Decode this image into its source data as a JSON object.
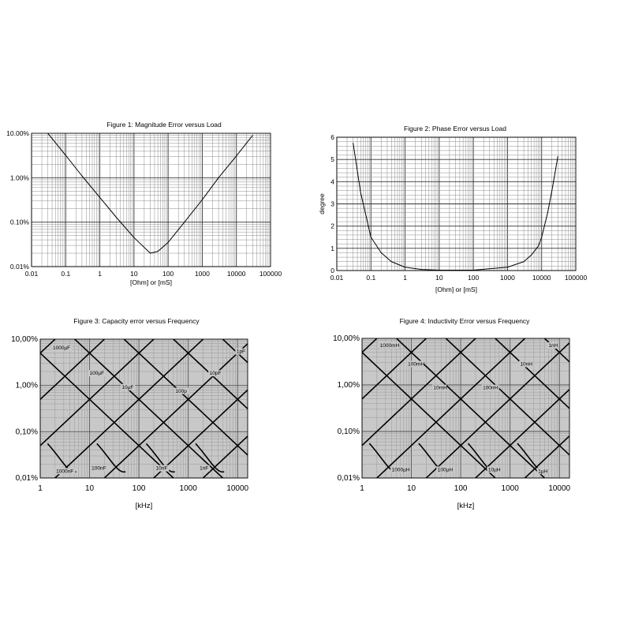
{
  "charts": [
    {
      "id": "fig1",
      "chart_data": {
        "type": "line",
        "title": "Figure 1:  Magnitude Error versus Load",
        "xlabel": "[Ohm]  or  [mS]",
        "ylabel": "",
        "x_scale": "log",
        "y_scale": "log",
        "xlim": [
          0.01,
          100000
        ],
        "ylim": [
          0.01,
          10
        ],
        "x_ticks": [
          "0.01",
          "0.1",
          "1",
          "10",
          "100",
          "1000",
          "10000",
          "100000"
        ],
        "y_ticks": [
          "0.01%",
          "0.10%",
          "1.00%",
          "10.00%"
        ],
        "grid": true,
        "series": [
          {
            "x": [
              0.03,
              0.1,
              0.3,
              1,
              3,
              10,
              20,
              30,
              50,
              100,
              300,
              1000,
              3000,
              10000,
              30000
            ],
            "y": [
              10,
              3.2,
              1.1,
              0.36,
              0.13,
              0.045,
              0.027,
              0.02,
              0.022,
              0.035,
              0.1,
              0.32,
              1.0,
              3.1,
              9.0
            ]
          }
        ]
      }
    },
    {
      "id": "fig2",
      "chart_data": {
        "type": "line",
        "title": "Figure 2:   Phase Error  versus Load",
        "xlabel": "[Ohm]  or  [mS]",
        "ylabel": "degree",
        "x_scale": "log",
        "y_scale": "linear",
        "xlim": [
          0.01,
          100000
        ],
        "ylim": [
          0,
          6
        ],
        "x_ticks": [
          "0.01",
          "0.1",
          "1",
          "10",
          "100",
          "1000",
          "10000",
          "100000"
        ],
        "y_ticks": [
          "0",
          "1",
          "2",
          "3",
          "4",
          "5",
          "6"
        ],
        "grid": true,
        "series": [
          {
            "x": [
              0.03,
              0.05,
              0.1,
              0.2,
              0.4,
              1,
              3,
              10,
              100,
              1000,
              3000,
              5000,
              8000,
              10000,
              15000,
              20000,
              30000
            ],
            "y": [
              5.75,
              3.5,
              1.5,
              0.8,
              0.4,
              0.15,
              0.05,
              0.02,
              0.02,
              0.15,
              0.4,
              0.7,
              1.1,
              1.5,
              2.6,
              3.6,
              5.15
            ]
          }
        ]
      }
    },
    {
      "id": "fig3",
      "chart_data": {
        "type": "line",
        "title": "Figure 3:   Capacity error versus Frequency",
        "xlabel": "[kHz]",
        "ylabel": "",
        "x_scale": "log",
        "y_scale": "log",
        "xlim": [
          1,
          16000
        ],
        "ylim": [
          0.01,
          10
        ],
        "x_ticks": [
          "1",
          "10",
          "100",
          "1000",
          "10000"
        ],
        "y_ticks": [
          "0,01%",
          "0,10%",
          "1,00%",
          "10,00%"
        ],
        "grid": true,
        "background": "#c8c8c8",
        "falling_lines": [
          {
            "label": "1000µF",
            "y_at_1kHz": 5,
            "label_x": 1.8,
            "label_y": 6.0
          },
          {
            "label": "100µF",
            "y_at_1kHz": 50,
            "label_x": 10,
            "label_y": 1.7
          },
          {
            "label": "10µF",
            "y_at_1kHz": 500,
            "label_x": 45,
            "label_y": 0.85
          },
          {
            "label": "100p",
            "y_at_1kHz": 5000,
            "label_x": 550,
            "label_y": 0.7
          },
          {
            "label": "10pF",
            "y_at_1kHz": 50000,
            "label_x": 2700,
            "label_y": 1.7
          },
          {
            "label": "1pF",
            "y_at_1kHz": 500000,
            "label_x": 9500,
            "label_y": 5.0
          }
        ],
        "rising_lines": [
          {
            "label": "1000nF",
            "label_x": 2.1,
            "label_y": 0.013
          },
          {
            "label": "100nF",
            "label_x": 11,
            "label_y": 0.015
          },
          {
            "label": "10nF",
            "label_x": 220,
            "label_y": 0.015
          },
          {
            "label": "1nF",
            "label_x": 1700,
            "label_y": 0.015
          }
        ]
      }
    },
    {
      "id": "fig4",
      "chart_data": {
        "type": "line",
        "title": "Figure 4:   Inductivity Error versus Frequency",
        "xlabel": "[kHz]",
        "ylabel": "",
        "x_scale": "log",
        "y_scale": "log",
        "xlim": [
          1,
          16000
        ],
        "ylim": [
          0.01,
          10
        ],
        "x_ticks": [
          "1",
          "10",
          "100",
          "1000",
          "10000"
        ],
        "y_ticks": [
          "0,01%",
          "0,10%",
          "1,00%",
          "10,00%"
        ],
        "grid": true,
        "background": "#c8c8c8",
        "falling_lines": [
          {
            "label": "1000mH",
            "y_at_1kHz": 5,
            "label_x": 2.3,
            "label_y": 6.5
          },
          {
            "label": "100mH",
            "y_at_1kHz": 50,
            "label_x": 8.5,
            "label_y": 2.6
          },
          {
            "label": "10mH",
            "y_at_1kHz": 500,
            "label_x": 28,
            "label_y": 0.8
          },
          {
            "label": "100nH",
            "y_at_1kHz": 5000,
            "label_x": 280,
            "label_y": 0.8
          },
          {
            "label": "10nH",
            "y_at_1kHz": 50000,
            "label_x": 1600,
            "label_y": 2.6
          },
          {
            "label": "1nH",
            "y_at_1kHz": 500000,
            "label_x": 6000,
            "label_y": 6.5
          }
        ],
        "rising_lines": [
          {
            "label": "1000µH",
            "label_x": 4,
            "label_y": 0.014
          },
          {
            "label": "100µH",
            "label_x": 34,
            "label_y": 0.014
          },
          {
            "label": "10µH",
            "label_x": 360,
            "label_y": 0.014
          },
          {
            "label": "1µH",
            "label_x": 3700,
            "label_y": 0.013
          }
        ]
      }
    }
  ]
}
